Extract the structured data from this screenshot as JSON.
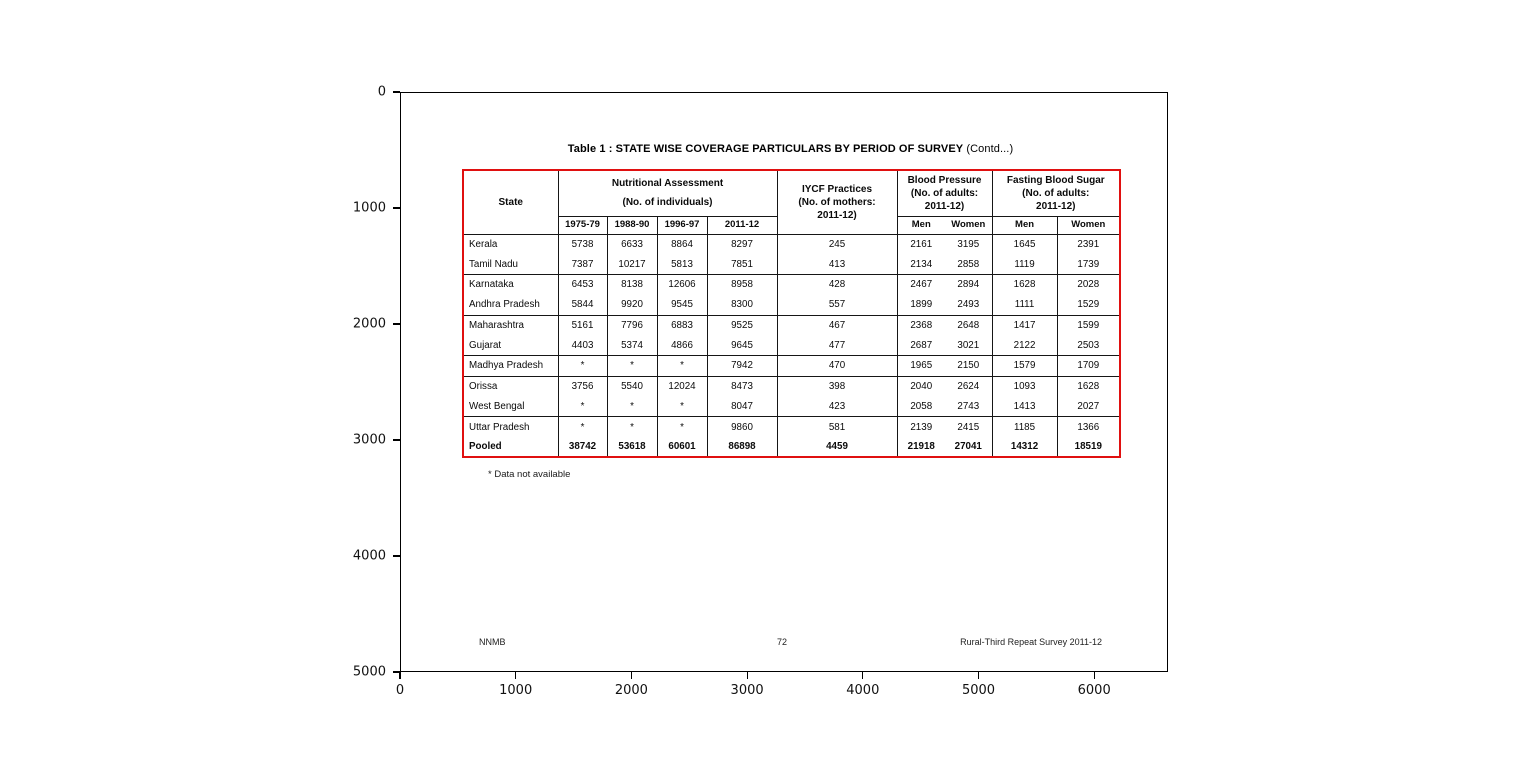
{
  "axes": {
    "x_ticks": [
      "0",
      "1000",
      "2000",
      "3000",
      "4000",
      "5000",
      "6000"
    ],
    "y_ticks": [
      "0",
      "1000",
      "2000",
      "3000",
      "4000",
      "5000"
    ]
  },
  "page": {
    "title_main": "Table 1 : STATE WISE COVERAGE PARTICULARS BY PERIOD OF SURVEY",
    "title_contd": " (Contd...)",
    "footnote": "* Data not available",
    "footer_left": "NNMB",
    "footer_center": "72",
    "footer_right": "Rural-Third Repeat Survey 2011-12",
    "accent_color": "#e01010"
  },
  "chart_data": {
    "type": "table",
    "title": "Table 1 : STATE WISE COVERAGE PARTICULARS BY PERIOD OF SURVEY (Contd...)",
    "header": {
      "state": "State",
      "nutrition": "Nutritional Assessment\n(No. of individuals)",
      "years": [
        "1975-79",
        "1988-90",
        "1996-97",
        "2011-12"
      ],
      "iycf": "IYCF Practices\n(No. of mothers:\n2011-12)",
      "bp": "Blood Pressure\n(No. of adults:\n2011-12)",
      "fbs": "Fasting  Blood Sugar\n(No. of adults:\n2011-12)",
      "men": "Men",
      "women": "Women"
    },
    "rows": [
      {
        "state": "Kerala",
        "values": [
          "5738",
          "6633",
          "8864",
          "8297",
          "245",
          "2161",
          "3195",
          "1645",
          "2391"
        ],
        "group_start": false,
        "bold": false
      },
      {
        "state": "Tamil Nadu",
        "values": [
          "7387",
          "10217",
          "5813",
          "7851",
          "413",
          "2134",
          "2858",
          "1119",
          "1739"
        ],
        "group_start": false,
        "bold": false
      },
      {
        "state": "Karnataka",
        "values": [
          "6453",
          "8138",
          "12606",
          "8958",
          "428",
          "2467",
          "2894",
          "1628",
          "2028"
        ],
        "group_start": true,
        "bold": false
      },
      {
        "state": "Andhra Pradesh",
        "values": [
          "5844",
          "9920",
          "9545",
          "8300",
          "557",
          "1899",
          "2493",
          "1111",
          "1529"
        ],
        "group_start": false,
        "bold": false
      },
      {
        "state": "Maharashtra",
        "values": [
          "5161",
          "7796",
          "6883",
          "9525",
          "467",
          "2368",
          "2648",
          "1417",
          "1599"
        ],
        "group_start": true,
        "bold": false
      },
      {
        "state": "Gujarat",
        "values": [
          "4403",
          "5374",
          "4866",
          "9645",
          "477",
          "2687",
          "3021",
          "2122",
          "2503"
        ],
        "group_start": false,
        "bold": false
      },
      {
        "state": "Madhya Pradesh",
        "values": [
          "*",
          "*",
          "*",
          "7942",
          "470",
          "1965",
          "2150",
          "1579",
          "1709"
        ],
        "group_start": true,
        "bold": false
      },
      {
        "state": "Orissa",
        "values": [
          "3756",
          "5540",
          "12024",
          "8473",
          "398",
          "2040",
          "2624",
          "1093",
          "1628"
        ],
        "group_start": true,
        "bold": false
      },
      {
        "state": "West Bengal",
        "values": [
          "*",
          "*",
          "*",
          "8047",
          "423",
          "2058",
          "2743",
          "1413",
          "2027"
        ],
        "group_start": false,
        "bold": false
      },
      {
        "state": "Uttar Pradesh",
        "values": [
          "*",
          "*",
          "*",
          "9860",
          "581",
          "2139",
          "2415",
          "1185",
          "1366"
        ],
        "group_start": true,
        "bold": false
      },
      {
        "state": "Pooled",
        "values": [
          "38742",
          "53618",
          "60601",
          "86898",
          "4459",
          "21918",
          "27041",
          "14312",
          "18519"
        ],
        "group_start": false,
        "bold": true
      }
    ]
  }
}
